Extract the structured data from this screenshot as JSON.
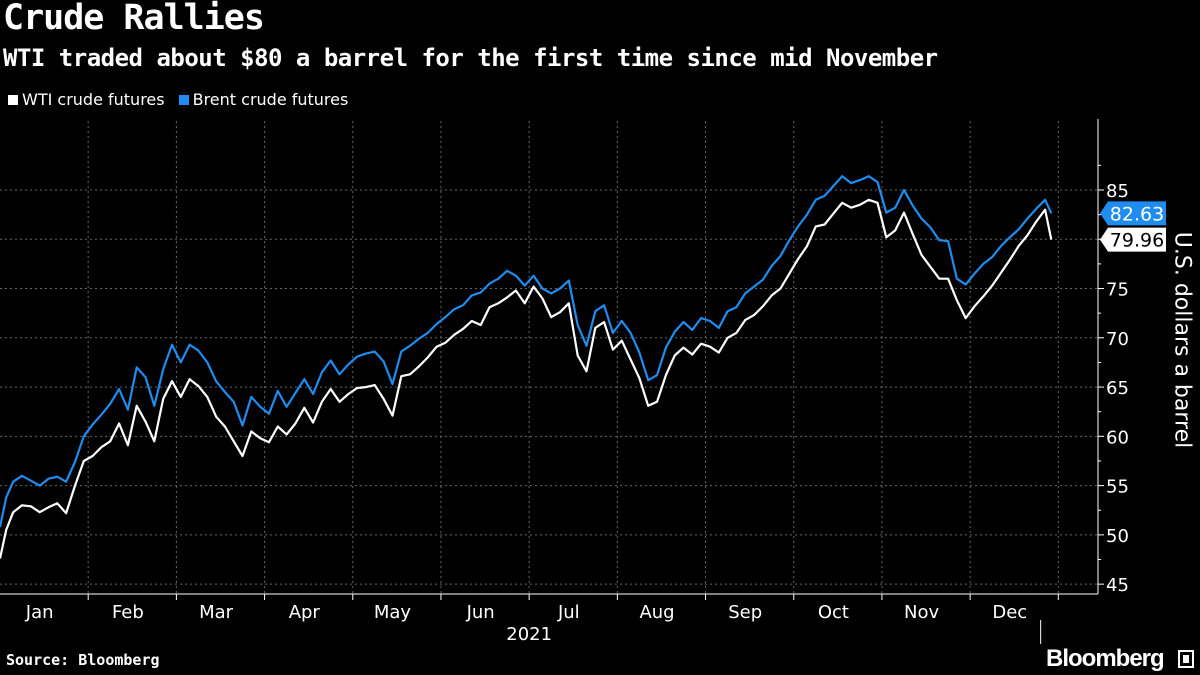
{
  "header": {
    "title": "Crude Rallies",
    "subtitle": "WTI traded about $80 a barrel for the first time since mid November"
  },
  "footer": {
    "source": "Source: Bloomberg",
    "brand": "Bloomberg"
  },
  "chart_data": {
    "type": "line",
    "title": "Crude Rallies",
    "subtitle": "WTI traded about $80 a barrel for the first time since mid November",
    "xlabel": "2021",
    "ylabel": "U.S. dollars a barrel",
    "ylim": [
      44,
      92
    ],
    "yticks": [
      45,
      50,
      55,
      60,
      65,
      70,
      75,
      80,
      85
    ],
    "ytick_labels": [
      "45",
      "50",
      "55",
      "60",
      "65",
      "70",
      "75",
      "80",
      "85"
    ],
    "xlim": [
      0,
      12.45
    ],
    "xticks": [
      "Jan",
      "Feb",
      "Mar",
      "Apr",
      "May",
      "Jun",
      "Jul",
      "Aug",
      "Sep",
      "Oct",
      "Nov",
      "Dec"
    ],
    "x_year_label": "2021",
    "grid": true,
    "legend_position": "top-left",
    "series": [
      {
        "name": "WTI crude futures",
        "color": "#ffffff",
        "last_value_label": "79.96",
        "x": [
          0.0,
          0.07,
          0.15,
          0.25,
          0.35,
          0.45,
          0.55,
          0.65,
          0.75,
          0.85,
          0.95,
          1.05,
          1.15,
          1.25,
          1.35,
          1.45,
          1.55,
          1.65,
          1.75,
          1.85,
          1.95,
          2.05,
          2.15,
          2.25,
          2.35,
          2.45,
          2.55,
          2.65,
          2.75,
          2.85,
          2.95,
          3.05,
          3.15,
          3.25,
          3.35,
          3.45,
          3.55,
          3.65,
          3.75,
          3.85,
          3.95,
          4.05,
          4.15,
          4.25,
          4.35,
          4.45,
          4.55,
          4.65,
          4.75,
          4.85,
          4.95,
          5.05,
          5.15,
          5.25,
          5.35,
          5.45,
          5.55,
          5.65,
          5.75,
          5.85,
          5.95,
          6.05,
          6.15,
          6.25,
          6.35,
          6.45,
          6.55,
          6.65,
          6.75,
          6.85,
          6.95,
          7.05,
          7.15,
          7.25,
          7.35,
          7.45,
          7.55,
          7.65,
          7.75,
          7.85,
          7.95,
          8.05,
          8.15,
          8.25,
          8.35,
          8.45,
          8.55,
          8.65,
          8.75,
          8.85,
          8.95,
          9.05,
          9.15,
          9.25,
          9.35,
          9.45,
          9.55,
          9.65,
          9.75,
          9.85,
          9.95,
          10.05,
          10.15,
          10.25,
          10.35,
          10.45,
          10.55,
          10.65,
          10.75,
          10.85,
          10.95,
          11.05,
          11.15,
          11.25,
          11.35,
          11.45,
          11.55,
          11.65,
          11.75,
          11.85,
          11.92
        ],
        "values": [
          47.6,
          50.5,
          52.3,
          53.0,
          52.9,
          52.3,
          52.8,
          53.2,
          52.2,
          55.0,
          57.5,
          58.0,
          58.9,
          59.5,
          61.3,
          59.1,
          63.1,
          61.5,
          59.5,
          63.8,
          65.6,
          64.0,
          65.8,
          65.1,
          64.0,
          62.0,
          61.0,
          59.5,
          58.0,
          60.5,
          59.8,
          59.4,
          61.0,
          60.2,
          61.3,
          62.9,
          61.4,
          63.5,
          64.8,
          63.5,
          64.3,
          64.9,
          65.0,
          65.2,
          63.8,
          62.1,
          66.1,
          66.3,
          67.1,
          68.0,
          69.1,
          69.5,
          70.3,
          70.9,
          71.7,
          71.3,
          73.1,
          73.5,
          74.1,
          74.8,
          73.5,
          75.2,
          74.0,
          72.1,
          72.6,
          73.5,
          68.2,
          66.6,
          71.0,
          71.6,
          68.8,
          69.7,
          67.8,
          65.9,
          63.1,
          63.5,
          66.2,
          68.2,
          69.0,
          68.3,
          69.4,
          69.1,
          68.5,
          70.0,
          70.5,
          71.8,
          72.3,
          73.2,
          74.3,
          75.0,
          76.5,
          78.0,
          79.3,
          81.3,
          81.5,
          82.6,
          83.7,
          83.2,
          83.5,
          84.0,
          83.7,
          80.2,
          80.9,
          82.7,
          80.5,
          78.4,
          77.2,
          76.0,
          76.0,
          73.8,
          72.0,
          73.2,
          74.2,
          75.3,
          76.6,
          77.9,
          79.3,
          80.4,
          81.8,
          83.0,
          79.96
        ]
      },
      {
        "name": "Brent crude futures",
        "color": "#1f8cf0",
        "last_value_label": "82.63",
        "x": [
          0.0,
          0.07,
          0.15,
          0.25,
          0.35,
          0.45,
          0.55,
          0.65,
          0.75,
          0.85,
          0.95,
          1.05,
          1.15,
          1.25,
          1.35,
          1.45,
          1.55,
          1.65,
          1.75,
          1.85,
          1.95,
          2.05,
          2.15,
          2.25,
          2.35,
          2.45,
          2.55,
          2.65,
          2.75,
          2.85,
          2.95,
          3.05,
          3.15,
          3.25,
          3.35,
          3.45,
          3.55,
          3.65,
          3.75,
          3.85,
          3.95,
          4.05,
          4.15,
          4.25,
          4.35,
          4.45,
          4.55,
          4.65,
          4.75,
          4.85,
          4.95,
          5.05,
          5.15,
          5.25,
          5.35,
          5.45,
          5.55,
          5.65,
          5.75,
          5.85,
          5.95,
          6.05,
          6.15,
          6.25,
          6.35,
          6.45,
          6.55,
          6.65,
          6.75,
          6.85,
          6.95,
          7.05,
          7.15,
          7.25,
          7.35,
          7.45,
          7.55,
          7.65,
          7.75,
          7.85,
          7.95,
          8.05,
          8.15,
          8.25,
          8.35,
          8.45,
          8.55,
          8.65,
          8.75,
          8.85,
          8.95,
          9.05,
          9.15,
          9.25,
          9.35,
          9.45,
          9.55,
          9.65,
          9.75,
          9.85,
          9.95,
          10.05,
          10.15,
          10.25,
          10.35,
          10.45,
          10.55,
          10.65,
          10.75,
          10.85,
          10.95,
          11.05,
          11.15,
          11.25,
          11.35,
          11.45,
          11.55,
          11.65,
          11.75,
          11.85,
          11.92
        ],
        "values": [
          50.8,
          53.8,
          55.4,
          56.0,
          55.5,
          55.0,
          55.7,
          55.9,
          55.4,
          57.4,
          60.0,
          61.2,
          62.2,
          63.3,
          64.8,
          62.7,
          67.0,
          66.0,
          63.1,
          66.8,
          69.3,
          67.5,
          69.3,
          68.7,
          67.5,
          65.6,
          64.5,
          63.5,
          61.1,
          64.0,
          63.0,
          62.3,
          64.6,
          63.0,
          64.4,
          65.8,
          64.3,
          66.5,
          67.7,
          66.3,
          67.3,
          68.1,
          68.4,
          68.6,
          67.6,
          65.3,
          68.6,
          69.2,
          69.9,
          70.5,
          71.4,
          72.1,
          72.9,
          73.3,
          74.3,
          74.6,
          75.5,
          76.0,
          76.8,
          76.3,
          75.3,
          76.3,
          75.0,
          74.5,
          75.0,
          75.8,
          71.3,
          69.2,
          72.7,
          73.3,
          70.5,
          71.7,
          70.5,
          68.5,
          65.7,
          66.2,
          69.0,
          70.6,
          71.6,
          70.8,
          72.0,
          71.7,
          71.0,
          72.7,
          73.1,
          74.5,
          75.2,
          75.9,
          77.3,
          78.3,
          79.9,
          81.3,
          82.5,
          84.0,
          84.4,
          85.4,
          86.4,
          85.7,
          86.0,
          86.4,
          85.8,
          82.7,
          83.2,
          85.0,
          83.4,
          82.1,
          81.2,
          79.9,
          79.8,
          76.0,
          75.4,
          76.5,
          77.5,
          78.2,
          79.3,
          80.2,
          81.0,
          82.1,
          83.1,
          84.0,
          82.63
        ]
      }
    ]
  }
}
